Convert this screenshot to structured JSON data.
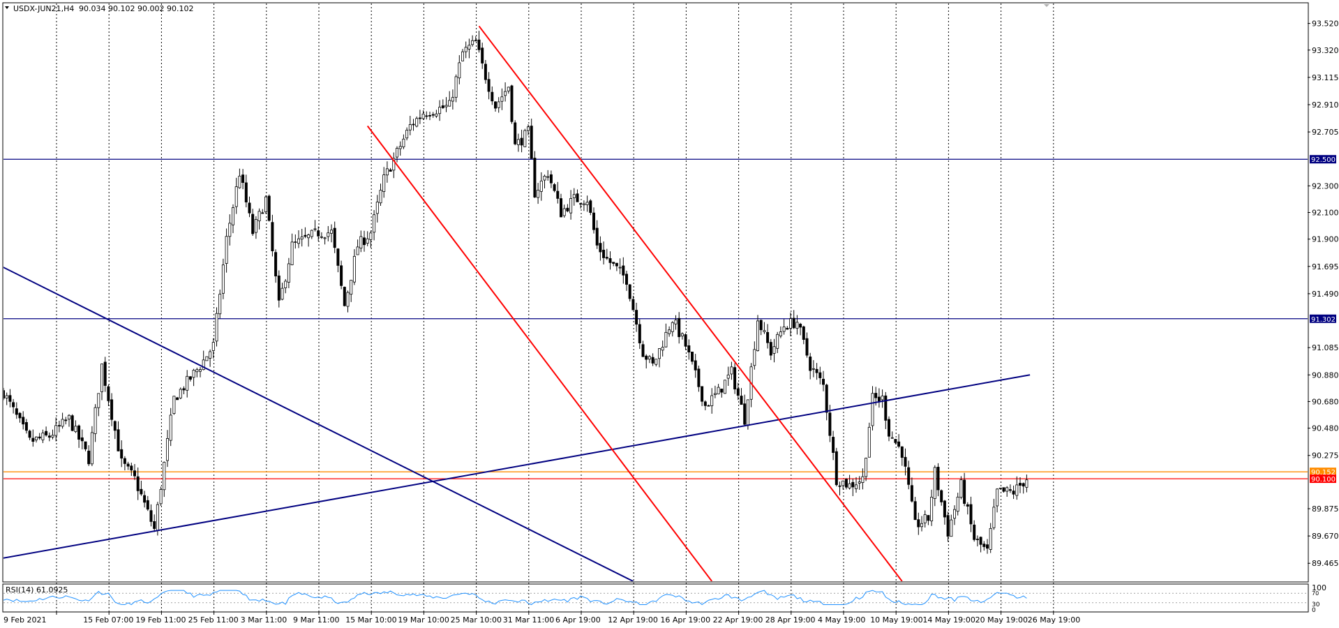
{
  "header": {
    "symbol": "USDX-JUN21,H4",
    "ohlc": "90.034 90.102 90.002 90.102"
  },
  "rsi": {
    "label": "RSI(14) 61.0925",
    "scale": [
      "100",
      "70",
      "30",
      "0"
    ],
    "levels": [
      70,
      30
    ]
  },
  "colors": {
    "candle": "#000000",
    "grid": "#000000",
    "channel": "#ff0000",
    "trend": "#000080",
    "rsi_line": "#1e90ff",
    "price_tag_bg": "#000080",
    "current_price_bg": "#ff0000",
    "ask_line": "#ff8c00"
  },
  "chart_data": {
    "type": "candlestick",
    "y_ticks": [
      93.52,
      93.32,
      93.115,
      92.91,
      92.705,
      92.3,
      92.1,
      91.9,
      91.695,
      91.49,
      91.085,
      90.88,
      90.68,
      90.48,
      90.275,
      89.875,
      89.67,
      89.465
    ],
    "y_tick_labels": [
      "93.520",
      "93.320",
      "93.115",
      "92.910",
      "92.705",
      "92.300",
      "92.100",
      "91.900",
      "91.695",
      "91.490",
      "91.085",
      "90.880",
      "90.680",
      "90.480",
      "90.275",
      "89.875",
      "89.670",
      "89.465"
    ],
    "ylim": [
      89.33,
      93.67
    ],
    "x_labels": [
      "9 Feb 2021",
      "15 Feb 07:00",
      "19 Feb 11:00",
      "25 Feb 11:00",
      "3 Mar 11:00",
      "9 Mar 11:00",
      "15 Mar 10:00",
      "19 Mar 10:00",
      "25 Mar 10:00",
      "31 Mar 11:00",
      "6 Apr 19:00",
      "12 Apr 19:00",
      "16 Apr 19:00",
      "22 Apr 19:00",
      "28 Apr 19:00",
      "4 May 19:00",
      "10 May 19:00",
      "14 May 19:00",
      "20 May 19:00",
      "26 May 19:00"
    ],
    "x_label_index": [
      0,
      16,
      32,
      48,
      64,
      80,
      96,
      112,
      128,
      144,
      160,
      176,
      192,
      208,
      224,
      240,
      256,
      272,
      288,
      304
    ],
    "bar_count": 321,
    "anchors": [
      [
        0,
        90.75
      ],
      [
        8,
        90.38
      ],
      [
        14,
        90.42
      ],
      [
        20,
        90.55
      ],
      [
        26,
        90.25
      ],
      [
        30,
        90.95
      ],
      [
        36,
        90.22
      ],
      [
        40,
        90.1
      ],
      [
        46,
        89.72
      ],
      [
        52,
        90.7
      ],
      [
        60,
        90.95
      ],
      [
        64,
        91.1
      ],
      [
        68,
        91.9
      ],
      [
        72,
        92.4
      ],
      [
        76,
        91.95
      ],
      [
        80,
        92.2
      ],
      [
        84,
        91.4
      ],
      [
        88,
        91.85
      ],
      [
        96,
        91.95
      ],
      [
        100,
        91.95
      ],
      [
        104,
        91.4
      ],
      [
        108,
        91.85
      ],
      [
        112,
        91.95
      ],
      [
        116,
        92.35
      ],
      [
        120,
        92.55
      ],
      [
        124,
        92.75
      ],
      [
        128,
        92.85
      ],
      [
        136,
        92.9
      ],
      [
        140,
        93.3
      ],
      [
        144,
        93.38
      ],
      [
        146,
        93.2
      ],
      [
        150,
        92.9
      ],
      [
        154,
        93.05
      ],
      [
        156,
        92.6
      ],
      [
        160,
        92.7
      ],
      [
        162,
        92.25
      ],
      [
        166,
        92.4
      ],
      [
        170,
        92.1
      ],
      [
        174,
        92.2
      ],
      [
        178,
        92.2
      ],
      [
        181,
        91.85
      ],
      [
        184,
        91.75
      ],
      [
        190,
        91.6
      ],
      [
        195,
        91.05
      ],
      [
        198,
        90.95
      ],
      [
        204,
        91.3
      ],
      [
        208,
        91.1
      ],
      [
        214,
        90.65
      ],
      [
        218,
        90.75
      ],
      [
        222,
        90.9
      ],
      [
        226,
        90.55
      ],
      [
        230,
        91.3
      ],
      [
        234,
        91.05
      ],
      [
        238,
        91.25
      ],
      [
        242,
        91.28
      ],
      [
        246,
        90.95
      ],
      [
        250,
        90.8
      ],
      [
        254,
        90.1
      ],
      [
        258,
        90.05
      ],
      [
        262,
        90.1
      ],
      [
        265,
        90.7
      ],
      [
        268,
        90.7
      ],
      [
        270,
        90.45
      ],
      [
        274,
        90.3
      ],
      [
        278,
        89.75
      ],
      [
        282,
        89.8
      ],
      [
        284,
        90.15
      ],
      [
        288,
        89.7
      ],
      [
        292,
        90.05
      ],
      [
        296,
        89.65
      ],
      [
        300,
        89.55
      ],
      [
        303,
        90.0
      ],
      [
        308,
        90.0
      ],
      [
        312,
        90.102
      ]
    ],
    "horizontal_lines": [
      {
        "price": 92.5,
        "label": "92.500",
        "color": "#000080"
      },
      {
        "price": 91.302,
        "label": "91.302",
        "color": "#000080"
      },
      {
        "price": 90.152,
        "label": "90.152",
        "color": "#ff8c00"
      },
      {
        "price": 90.1,
        "label": "90.100",
        "color": "#ff0000"
      }
    ],
    "trendlines": [
      {
        "color": "#000080",
        "from": [
          -1,
          91.7
        ],
        "to": [
          192,
          89.33
        ]
      },
      {
        "color": "#000080",
        "from": [
          -1,
          89.5
        ],
        "to": [
          313,
          90.88
        ]
      },
      {
        "color": "#ff0000",
        "from": [
          111,
          92.75
        ],
        "to": [
          216,
          89.33
        ]
      },
      {
        "color": "#ff0000",
        "from": [
          145,
          93.5
        ],
        "to": [
          274,
          89.33
        ]
      }
    ],
    "grid": true
  }
}
